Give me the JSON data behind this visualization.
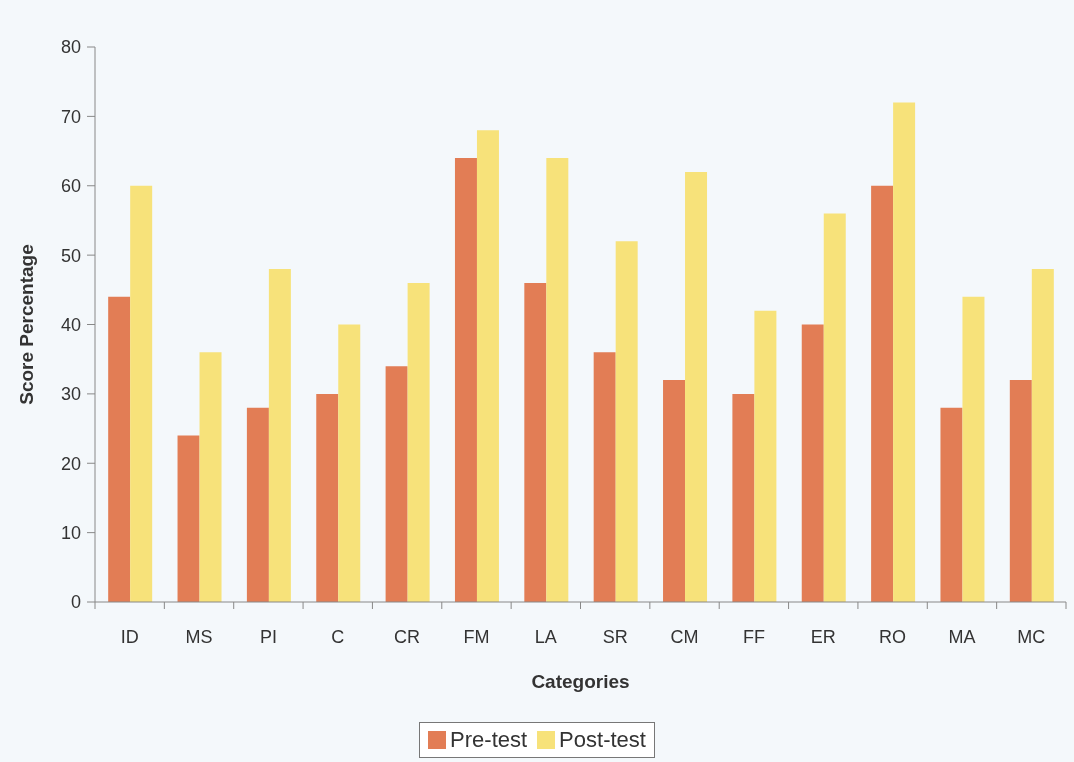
{
  "chart_data": {
    "type": "bar",
    "xlabel": "Categories",
    "ylabel": "Score Percentage",
    "categories": [
      "ID",
      "MS",
      "PI",
      "C",
      "CR",
      "FM",
      "LA",
      "SR",
      "CM",
      "FF",
      "ER",
      "RO",
      "MA",
      "MC"
    ],
    "series": [
      {
        "name": "Pre-test",
        "color": "#e27d55",
        "values": [
          44,
          24,
          28,
          30,
          34,
          64,
          46,
          36,
          32,
          30,
          40,
          60,
          28,
          32
        ]
      },
      {
        "name": "Post-test",
        "color": "#f7e27a",
        "values": [
          60,
          36,
          48,
          40,
          46,
          68,
          64,
          52,
          62,
          42,
          56,
          72,
          44,
          48
        ]
      }
    ],
    "ylim": [
      0,
      80
    ],
    "yticks": [
      0,
      10,
      20,
      30,
      40,
      50,
      60,
      70,
      80
    ],
    "legend": "bottom"
  }
}
